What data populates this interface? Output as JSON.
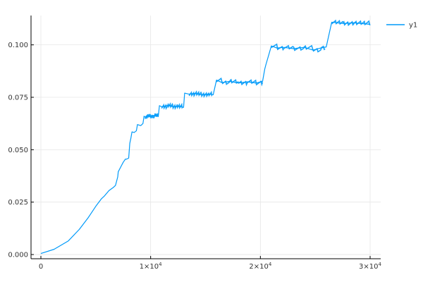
{
  "chart_data": {
    "type": "line",
    "title": "",
    "xlabel": "",
    "ylabel": "",
    "xlim": [
      0,
      30000
    ],
    "ylim": [
      -0.002,
      0.114
    ],
    "grid": true,
    "legend_position": "top-right",
    "x_ticks": [
      {
        "value": 0,
        "label": "0",
        "exp": ""
      },
      {
        "value": 10000,
        "label": "1×10",
        "exp": "4"
      },
      {
        "value": 20000,
        "label": "2×10",
        "exp": "4"
      },
      {
        "value": 30000,
        "label": "3×10",
        "exp": "4"
      }
    ],
    "y_ticks": [
      {
        "value": 0.0,
        "label": "0.000"
      },
      {
        "value": 0.025,
        "label": "0.025"
      },
      {
        "value": 0.05,
        "label": "0.050"
      },
      {
        "value": 0.075,
        "label": "0.075"
      },
      {
        "value": 0.1,
        "label": "0.100"
      }
    ],
    "series": [
      {
        "name": "y1",
        "color": "#009af9",
        "x": [
          0,
          1200,
          2500,
          3500,
          4300,
          5000,
          5500,
          5800,
          6200,
          6600,
          6800,
          7000,
          7050,
          7300,
          7500,
          7700,
          7800,
          8000,
          8100,
          8200,
          8300,
          8500,
          8700,
          8800,
          9100,
          9300,
          9400,
          9500,
          9700,
          10000,
          10400,
          10700,
          10800,
          11000,
          11600,
          12000,
          12400,
          13000,
          13100,
          13500,
          14000,
          14600,
          15300,
          15700,
          16000,
          16500,
          17200,
          18000,
          18800,
          19600,
          20200,
          20400,
          20500,
          21000,
          21500,
          22100,
          23000,
          24000,
          24800,
          25500,
          26000,
          26500,
          27500,
          28500,
          30000
        ],
        "y": [
          0.0005,
          0.0025,
          0.0065,
          0.012,
          0.0175,
          0.023,
          0.0265,
          0.028,
          0.0305,
          0.032,
          0.033,
          0.037,
          0.0395,
          0.042,
          0.044,
          0.0455,
          0.0455,
          0.046,
          0.053,
          0.0555,
          0.0585,
          0.0582,
          0.059,
          0.062,
          0.0615,
          0.0625,
          0.066,
          0.0655,
          0.0662,
          0.0658,
          0.0665,
          0.066,
          0.071,
          0.0705,
          0.0712,
          0.0705,
          0.0708,
          0.0702,
          0.077,
          0.0765,
          0.0768,
          0.0762,
          0.0766,
          0.0762,
          0.0832,
          0.082,
          0.0826,
          0.0818,
          0.0824,
          0.0818,
          0.0826,
          0.0885,
          0.0905,
          0.0995,
          0.0985,
          0.0988,
          0.0982,
          0.0988,
          0.0975,
          0.0985,
          0.099,
          0.1108,
          0.1102,
          0.1105,
          0.1098
        ]
      }
    ]
  }
}
